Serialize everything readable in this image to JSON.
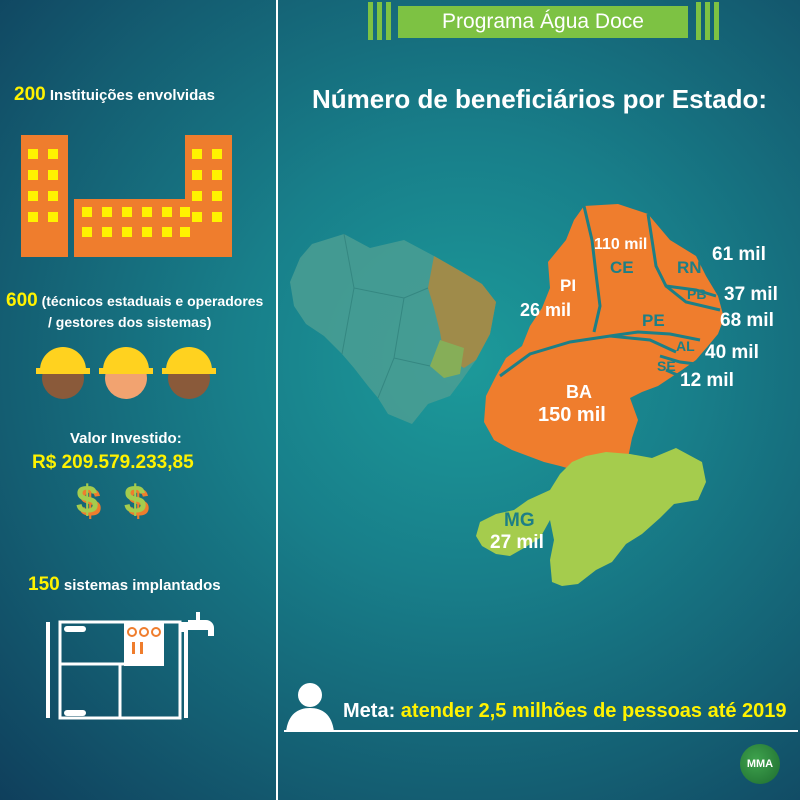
{
  "left": {
    "institutions": {
      "count": "200",
      "label": "Instituições envolvidas"
    },
    "technicians": {
      "count": "600",
      "label_line1": "(técnicos estaduais e operadores",
      "label_line2": "/ gestores dos sistemas)"
    },
    "investment": {
      "label": "Valor Investido:",
      "value": "R$ 209.579.233,85",
      "symbol": "$"
    },
    "systems": {
      "count": "150",
      "label": "sistemas implantados"
    }
  },
  "banner": {
    "title": "Programa Água Doce"
  },
  "map": {
    "title": "Número de beneficiários por Estado:",
    "states": [
      {
        "code": "PI",
        "value": "26 mil"
      },
      {
        "code": "CE",
        "value": "110 mil"
      },
      {
        "code": "RN",
        "value": "61 mil"
      },
      {
        "code": "PB",
        "value": "37 mil"
      },
      {
        "code": "PE",
        "value": "68 mil"
      },
      {
        "code": "AL",
        "value": "40 mil"
      },
      {
        "code": "SE",
        "value": "12 mil"
      },
      {
        "code": "BA",
        "value": "150 mil"
      },
      {
        "code": "MG",
        "value": "27 mil"
      }
    ]
  },
  "footer": {
    "meta_label": "Meta:",
    "meta_text": "atender 2,5 milhões de pessoas até 2019",
    "logo": "MMA"
  },
  "colors": {
    "orange": "#ef7d2d",
    "green": "#a5cc4d",
    "yellow": "#fff200",
    "banner": "#7dc243"
  }
}
